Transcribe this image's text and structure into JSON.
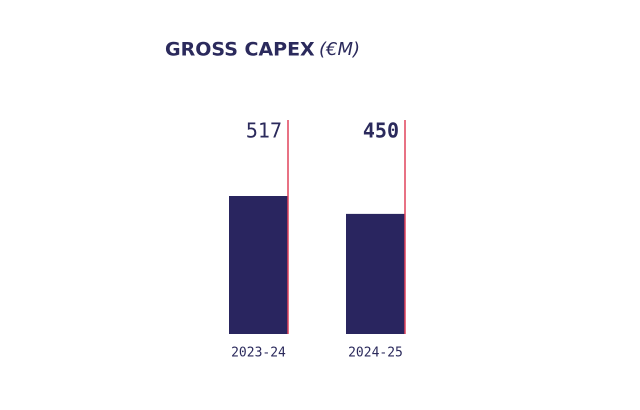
{
  "chart_data": {
    "type": "bar",
    "title": "GROSS CAPEX",
    "title_unit": "(€M)",
    "categories": [
      "2023-24",
      "2024-25"
    ],
    "values": [
      517,
      450
    ],
    "color": "#29255f",
    "line_color": "#e0435b",
    "highlight_index": 1
  }
}
